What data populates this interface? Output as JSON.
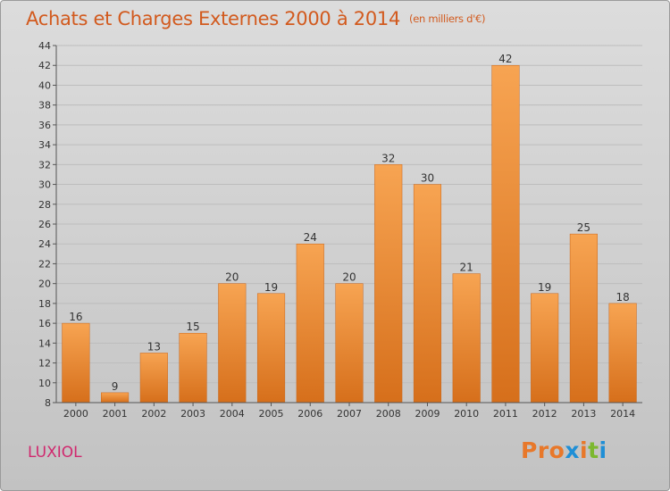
{
  "header": {
    "title": "Achats et Charges Externes 2000 à 2014",
    "unit": "(en milliers d'€)"
  },
  "footer": {
    "commune": "LUXIOL",
    "logo": "Proxiti"
  },
  "colors": {
    "title": "#d25a1e",
    "commune": "#d0286e",
    "bar_light": "#f7a452",
    "bar_dark": "#d66f1b",
    "logo_letters": [
      "#e8782a",
      "#e8782a",
      "#e8782a",
      "#1f8fd6",
      "#e8782a",
      "#7cb82f",
      "#1f8fd6"
    ]
  },
  "chart_data": {
    "type": "bar",
    "title": "Achats et Charges Externes 2000 à 2014",
    "categories": [
      "2000",
      "2001",
      "2002",
      "2003",
      "2004",
      "2005",
      "2006",
      "2007",
      "2008",
      "2009",
      "2010",
      "2011",
      "2012",
      "2013",
      "2014"
    ],
    "values": [
      16,
      9,
      13,
      15,
      20,
      19,
      24,
      20,
      32,
      30,
      21,
      42,
      19,
      25,
      18
    ],
    "value_labels": [
      "16",
      "9",
      "13",
      "15",
      "20",
      "19",
      "24",
      "20",
      "32",
      "30",
      "21",
      "42",
      "19",
      "25",
      "18"
    ],
    "ylim": [
      8,
      44
    ],
    "yticks": [
      "8",
      "10",
      "12",
      "14",
      "16",
      "18",
      "20",
      "22",
      "24",
      "26",
      "28",
      "30",
      "32",
      "34",
      "36",
      "38",
      "40",
      "42",
      "44"
    ],
    "grid": true,
    "xlabel": "",
    "ylabel": ""
  }
}
